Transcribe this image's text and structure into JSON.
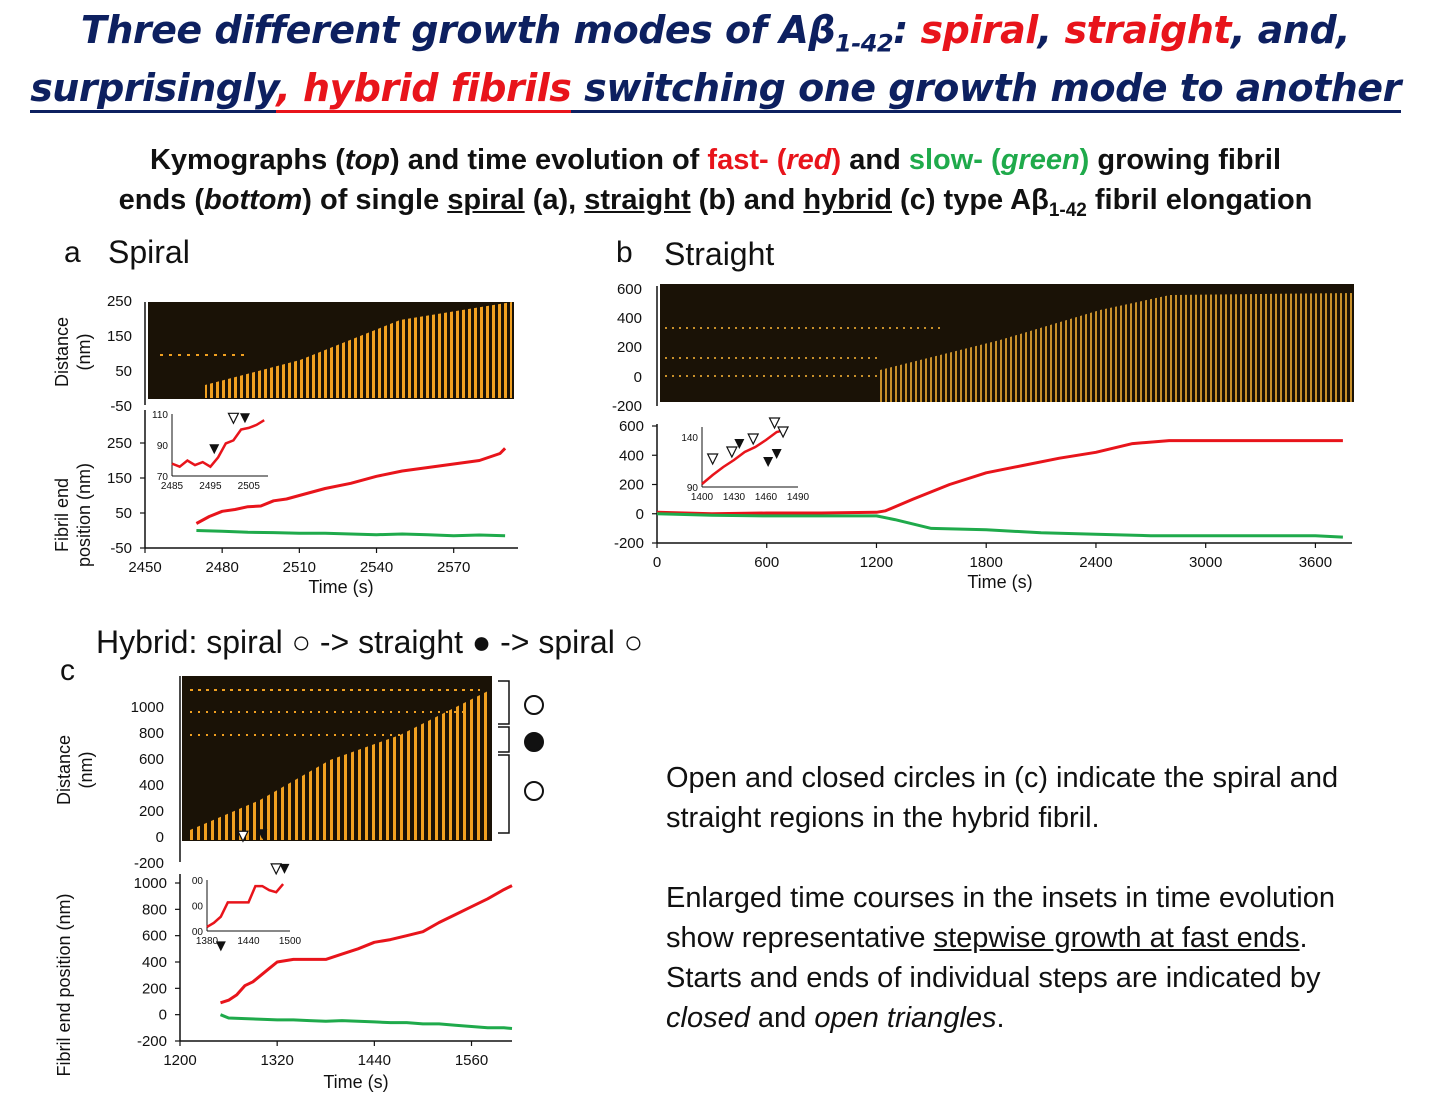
{
  "title": {
    "line1_a": "Three different growth modes of Aβ",
    "line1_sub": "1-42",
    "line1_b": ": ",
    "spiral": "spiral",
    "comma": ", ",
    "straight": "straight",
    "and": ", and,",
    "line2_a": "surprisingly",
    "line2_hybrid": ", hybrid fibrils",
    "line2_b": " switching one growth mode to another"
  },
  "subtitle": {
    "l1_a": "Kymographs (",
    "top": "top",
    "l1_b": ") and time evolution of ",
    "fast": "fast- (",
    "red": "red",
    "fast_close": ")",
    "l1_c": " and ",
    "slow": "slow- (",
    "green": "green",
    "slow_close": ")",
    "l1_d": " growing fibril",
    "l2_a": "ends (",
    "bottom": "bottom",
    "l2_b": ") of single ",
    "spiral": "spiral",
    "l2_c": " (a), ",
    "straight": "straight",
    "l2_d": " (b) and ",
    "hybrid": "hybrid",
    "l2_e": " (c) type Aβ",
    "sub": "1-42",
    "l2_f": " fibril elongation"
  },
  "panels": {
    "a": {
      "label": "a",
      "name": "Spiral"
    },
    "b": {
      "label": "b",
      "name": "Straight"
    },
    "c": {
      "label": "c",
      "name": "Hybrid: spiral ○ -> straight ● -> spiral ○"
    }
  },
  "axes": {
    "distance": "Distance",
    "nm": "(nm)",
    "fibril_end_a": "Fibril end",
    "position_nm": "position (nm)",
    "fibril_end_c": "Fibril end position (nm)",
    "time": "Time (s)"
  },
  "colors": {
    "fast": "#e8141b",
    "slow": "#1faa4b",
    "kymo_bg": "#1a1206",
    "kymo_fg": "#f0a020"
  },
  "chart_data": [
    {
      "id": "a-kymograph",
      "type": "heatmap",
      "ylabel": "Distance (nm)",
      "yticks": [
        250,
        150,
        50,
        -50
      ]
    },
    {
      "id": "a-time-evolution",
      "type": "line",
      "xlabel": "Time (s)",
      "ylabel": "Fibril end position (nm)",
      "xlim": [
        2450,
        2595
      ],
      "ylim": [
        -50,
        250
      ],
      "xticks": [
        2450,
        2480,
        2510,
        2540,
        2570
      ],
      "yticks": [
        250,
        150,
        50,
        -50
      ],
      "series": [
        {
          "color": "#e8141b",
          "x": [
            2470,
            2475,
            2480,
            2485,
            2490,
            2495,
            2500,
            2505,
            2510,
            2520,
            2530,
            2540,
            2550,
            2560,
            2570,
            2580,
            2588,
            2590
          ],
          "values": [
            20,
            40,
            55,
            60,
            68,
            70,
            85,
            90,
            100,
            120,
            135,
            155,
            170,
            180,
            190,
            200,
            220,
            235
          ]
        },
        {
          "color": "#1faa4b",
          "x": [
            2470,
            2480,
            2490,
            2500,
            2510,
            2520,
            2530,
            2540,
            2550,
            2560,
            2570,
            2580,
            2590
          ],
          "values": [
            0,
            -2,
            -5,
            -6,
            -8,
            -8,
            -10,
            -12,
            -10,
            -12,
            -15,
            -13,
            -15
          ]
        }
      ],
      "inset": {
        "xlim": [
          2485,
          2510
        ],
        "ylim": [
          70,
          110
        ],
        "xticks": [
          2485,
          2495,
          2505
        ],
        "yticks": [
          110,
          90,
          70
        ],
        "x": [
          2485,
          2487,
          2489,
          2491,
          2493,
          2495,
          2497,
          2499,
          2501,
          2503,
          2505,
          2507,
          2509
        ],
        "values": [
          78,
          76,
          80,
          77,
          79,
          76,
          82,
          91,
          93,
          100,
          101,
          103,
          106
        ],
        "closed_triangles": [
          [
            2496,
            84
          ],
          [
            2504,
            104
          ]
        ],
        "open_triangles": [
          [
            2501,
            104
          ]
        ]
      }
    },
    {
      "id": "b-kymograph",
      "type": "heatmap",
      "yticks": [
        600,
        400,
        200,
        0,
        -200
      ]
    },
    {
      "id": "b-time-evolution",
      "type": "line",
      "xlabel": "Time (s)",
      "xlim": [
        0,
        3800
      ],
      "ylim": [
        -200,
        600
      ],
      "xticks": [
        0,
        600,
        1200,
        1800,
        2400,
        3000,
        3600
      ],
      "yticks": [
        600,
        400,
        200,
        0,
        -200
      ],
      "series": [
        {
          "color": "#e8141b",
          "x": [
            0,
            300,
            600,
            900,
            1200,
            1250,
            1400,
            1600,
            1800,
            2000,
            2200,
            2400,
            2600,
            2800,
            3000,
            3300,
            3600,
            3750
          ],
          "values": [
            10,
            0,
            5,
            5,
            10,
            20,
            100,
            200,
            280,
            330,
            380,
            420,
            480,
            500,
            500,
            500,
            500,
            500
          ]
        },
        {
          "color": "#1faa4b",
          "x": [
            0,
            300,
            600,
            900,
            1200,
            1300,
            1500,
            1800,
            2100,
            2400,
            2700,
            3000,
            3300,
            3600,
            3750
          ],
          "values": [
            0,
            -10,
            -15,
            -15,
            -15,
            -40,
            -100,
            -110,
            -130,
            -140,
            -150,
            -150,
            -150,
            -150,
            -160
          ]
        }
      ],
      "inset": {
        "xlim": [
          1400,
          1490
        ],
        "ylim": [
          90,
          150
        ],
        "xticks": [
          1400,
          1430,
          1460,
          1490
        ],
        "yticks": [
          140,
          90
        ],
        "x": [
          1400,
          1410,
          1420,
          1430,
          1440,
          1450,
          1460,
          1470,
          1478
        ],
        "values": [
          93,
          102,
          110,
          117,
          125,
          130,
          137,
          145,
          147
        ],
        "closed_triangles": [
          [
            1435,
            128
          ],
          [
            1462,
            110
          ],
          [
            1470,
            118
          ]
        ],
        "open_triangles": [
          [
            1410,
            113
          ],
          [
            1428,
            120
          ],
          [
            1448,
            133
          ],
          [
            1468,
            149
          ],
          [
            1476,
            140
          ]
        ]
      }
    },
    {
      "id": "c-kymograph",
      "type": "heatmap",
      "ylabel": "Distance (nm)",
      "yticks": [
        1000,
        800,
        600,
        400,
        200,
        0,
        -200
      ]
    },
    {
      "id": "c-time-evolution",
      "type": "line",
      "xlabel": "Time (s)",
      "ylabel": "Fibril end position (nm)",
      "xlim": [
        1200,
        1610
      ],
      "ylim": [
        -200,
        1000
      ],
      "xticks": [
        1200,
        1320,
        1440,
        1560
      ],
      "yticks": [
        1000,
        800,
        600,
        400,
        200,
        0,
        -200
      ],
      "series": [
        {
          "color": "#e8141b",
          "x": [
            1250,
            1260,
            1270,
            1280,
            1290,
            1300,
            1310,
            1320,
            1340,
            1360,
            1380,
            1400,
            1420,
            1440,
            1460,
            1480,
            1500,
            1520,
            1540,
            1560,
            1580,
            1600,
            1610
          ],
          "values": [
            90,
            110,
            150,
            220,
            250,
            300,
            350,
            400,
            420,
            420,
            420,
            460,
            500,
            550,
            570,
            600,
            630,
            700,
            760,
            820,
            880,
            950,
            980
          ]
        },
        {
          "color": "#1faa4b",
          "x": [
            1250,
            1260,
            1280,
            1300,
            1320,
            1340,
            1360,
            1380,
            1400,
            1420,
            1440,
            1460,
            1480,
            1500,
            1520,
            1540,
            1560,
            1580,
            1600,
            1610
          ],
          "values": [
            0,
            -25,
            -30,
            -35,
            -40,
            -40,
            -45,
            -50,
            -45,
            -50,
            -55,
            -60,
            -60,
            -70,
            -70,
            -80,
            -90,
            -100,
            -100,
            -105
          ]
        }
      ],
      "inset": {
        "xlim": [
          1380,
          1500
        ],
        "xticks": [
          1380,
          1440,
          1500
        ],
        "yticks": [
          "00",
          "00",
          "00"
        ],
        "x": [
          1380,
          1390,
          1400,
          1410,
          1420,
          1430,
          1440,
          1450,
          1460,
          1470,
          1480,
          1490
        ],
        "values": [
          300,
          320,
          350,
          420,
          420,
          420,
          420,
          500,
          500,
          480,
          470,
          510
        ],
        "closed_triangles": [
          [
            1400,
            180
          ],
          [
            1460,
            730
          ],
          [
            1492,
            560
          ]
        ],
        "open_triangles": [
          [
            1432,
            720
          ],
          [
            1480,
            560
          ]
        ]
      }
    }
  ],
  "legend_c": {
    "top": "○",
    "middle": "●",
    "bottom": "○"
  },
  "paragraph1": {
    "text": "Open and closed circles in (c) indicate the spiral and straight regions in the hybrid fibril."
  },
  "paragraph2": {
    "a": "Enlarged time courses in the insets in time evolution show representative ",
    "u": "stepwise growth at fast ends",
    "b": ". Starts and ends of individual steps are indicated by ",
    "closed": "closed",
    "c": " and ",
    "open": "open triangles",
    "d": "."
  }
}
